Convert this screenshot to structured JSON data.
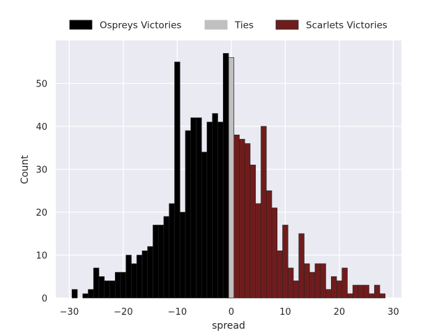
{
  "chart_data": {
    "type": "bar",
    "xlabel": "spread",
    "ylabel": "Count",
    "xlim": [
      -32.5,
      31.5
    ],
    "ylim": [
      0,
      60
    ],
    "x_ticks": [
      -30,
      -20,
      -10,
      0,
      10,
      20,
      30
    ],
    "x_tick_labels": [
      "−30",
      "−20",
      "−10",
      "0",
      "10",
      "20",
      "30"
    ],
    "y_ticks": [
      0,
      10,
      20,
      30,
      40,
      50
    ],
    "y_tick_labels": [
      "0",
      "10",
      "20",
      "30",
      "40",
      "50"
    ],
    "grid": true,
    "legend_position": "top-center",
    "bin_width": 1,
    "series": [
      {
        "name": "Ospreys Victories",
        "color": "#000000",
        "bins": [
          {
            "x": -29,
            "count": 2
          },
          {
            "x": -28,
            "count": 0
          },
          {
            "x": -27,
            "count": 1
          },
          {
            "x": -26,
            "count": 2
          },
          {
            "x": -25,
            "count": 7
          },
          {
            "x": -24,
            "count": 5
          },
          {
            "x": -23,
            "count": 4
          },
          {
            "x": -22,
            "count": 4
          },
          {
            "x": -21,
            "count": 6
          },
          {
            "x": -20,
            "count": 6
          },
          {
            "x": -19,
            "count": 10
          },
          {
            "x": -18,
            "count": 8
          },
          {
            "x": -17,
            "count": 10
          },
          {
            "x": -16,
            "count": 11
          },
          {
            "x": -15,
            "count": 12
          },
          {
            "x": -14,
            "count": 17
          },
          {
            "x": -13,
            "count": 17
          },
          {
            "x": -12,
            "count": 19
          },
          {
            "x": -11,
            "count": 22
          },
          {
            "x": -10,
            "count": 55
          },
          {
            "x": -9,
            "count": 20
          },
          {
            "x": -8,
            "count": 39
          },
          {
            "x": -7,
            "count": 42
          },
          {
            "x": -6,
            "count": 42
          },
          {
            "x": -5,
            "count": 34
          },
          {
            "x": -4,
            "count": 41
          },
          {
            "x": -3,
            "count": 43
          },
          {
            "x": -2,
            "count": 41
          },
          {
            "x": -1,
            "count": 57
          }
        ]
      },
      {
        "name": "Ties",
        "color": "#c0c0c0",
        "bins": [
          {
            "x": 0,
            "count": 56
          }
        ]
      },
      {
        "name": "Scarlets Victories",
        "color": "#701c1c",
        "bins": [
          {
            "x": 1,
            "count": 38
          },
          {
            "x": 2,
            "count": 37
          },
          {
            "x": 3,
            "count": 36
          },
          {
            "x": 4,
            "count": 31
          },
          {
            "x": 5,
            "count": 22
          },
          {
            "x": 6,
            "count": 40
          },
          {
            "x": 7,
            "count": 25
          },
          {
            "x": 8,
            "count": 21
          },
          {
            "x": 9,
            "count": 11
          },
          {
            "x": 10,
            "count": 17
          },
          {
            "x": 11,
            "count": 7
          },
          {
            "x": 12,
            "count": 4
          },
          {
            "x": 13,
            "count": 15
          },
          {
            "x": 14,
            "count": 8
          },
          {
            "x": 15,
            "count": 6
          },
          {
            "x": 16,
            "count": 8
          },
          {
            "x": 17,
            "count": 8
          },
          {
            "x": 18,
            "count": 2
          },
          {
            "x": 19,
            "count": 5
          },
          {
            "x": 20,
            "count": 4
          },
          {
            "x": 21,
            "count": 7
          },
          {
            "x": 22,
            "count": 1
          },
          {
            "x": 23,
            "count": 3
          },
          {
            "x": 24,
            "count": 3
          },
          {
            "x": 25,
            "count": 3
          },
          {
            "x": 26,
            "count": 1
          },
          {
            "x": 27,
            "count": 3
          },
          {
            "x": 28,
            "count": 1
          }
        ]
      }
    ]
  }
}
